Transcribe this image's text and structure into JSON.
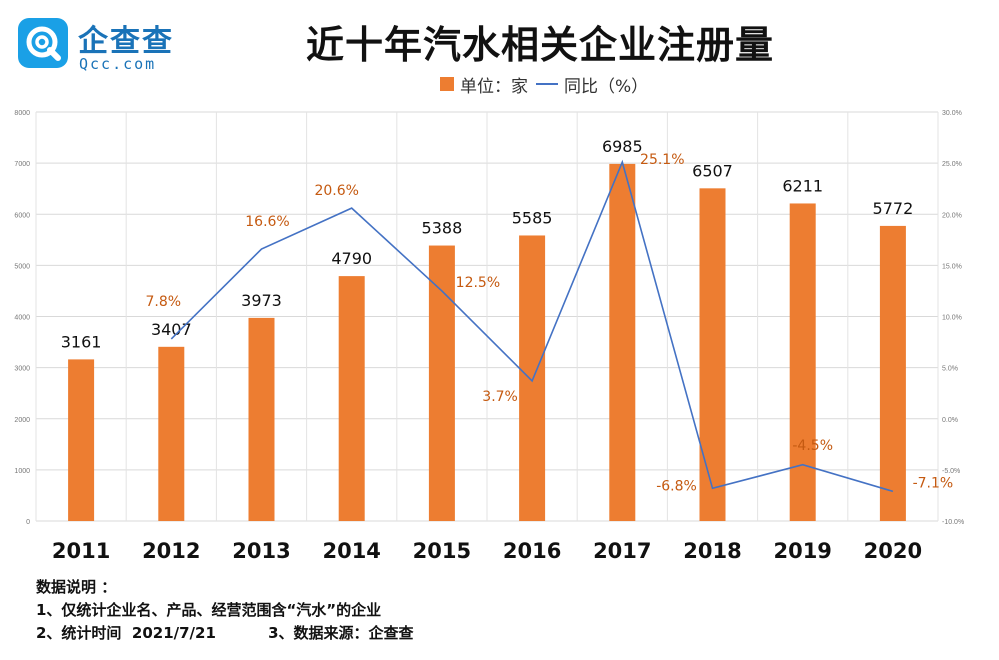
{
  "logo": {
    "name": "企查查",
    "domain": "Qcc.com"
  },
  "title": "近十年汽水相关企业注册量",
  "legend": {
    "bar_label": "单位：家",
    "line_label": "同比（%）"
  },
  "colors": {
    "bar": "#ed7d31",
    "line": "#4472c4",
    "line_label": "#c55a11"
  },
  "chart_data": {
    "type": "bar",
    "title": "近十年汽水相关企业注册量",
    "categories": [
      "2011",
      "2012",
      "2013",
      "2014",
      "2015",
      "2016",
      "2017",
      "2018",
      "2019",
      "2020"
    ],
    "series": [
      {
        "name": "单位：家",
        "type": "bar",
        "axis": "left",
        "values": [
          3161,
          3407,
          3973,
          4790,
          5388,
          5585,
          6985,
          6507,
          6211,
          5772
        ]
      },
      {
        "name": "同比（%）",
        "type": "line",
        "axis": "right",
        "values": [
          null,
          7.8,
          16.6,
          20.6,
          12.5,
          3.7,
          25.1,
          -6.8,
          -4.5,
          -7.1
        ],
        "labels": [
          "",
          "7.8%",
          "16.6%",
          "20.6%",
          "12.5%",
          "3.7%",
          "25.1%",
          "-6.8%",
          "-4.5%",
          "-7.1%"
        ]
      }
    ],
    "y_left": {
      "range": [
        0,
        8000
      ],
      "ticks": [
        "0",
        "1000",
        "2000",
        "3000",
        "4000",
        "5000",
        "6000",
        "7000",
        "8000"
      ]
    },
    "y_right": {
      "range": [
        -10,
        30
      ],
      "ticks": [
        "-10.0%",
        "-5.0%",
        "0.0%",
        "5.0%",
        "10.0%",
        "15.0%",
        "20.0%",
        "25.0%",
        "30.0%"
      ]
    },
    "grid": true,
    "legend_position": "top-center"
  },
  "notes": {
    "heading": "数据说明 ：",
    "line1": "1、仅统计企业名、产品、经营范围含“汽水”的企业",
    "line2": "2、统计时间  2021/7/21          3、数据来源：企查查"
  }
}
